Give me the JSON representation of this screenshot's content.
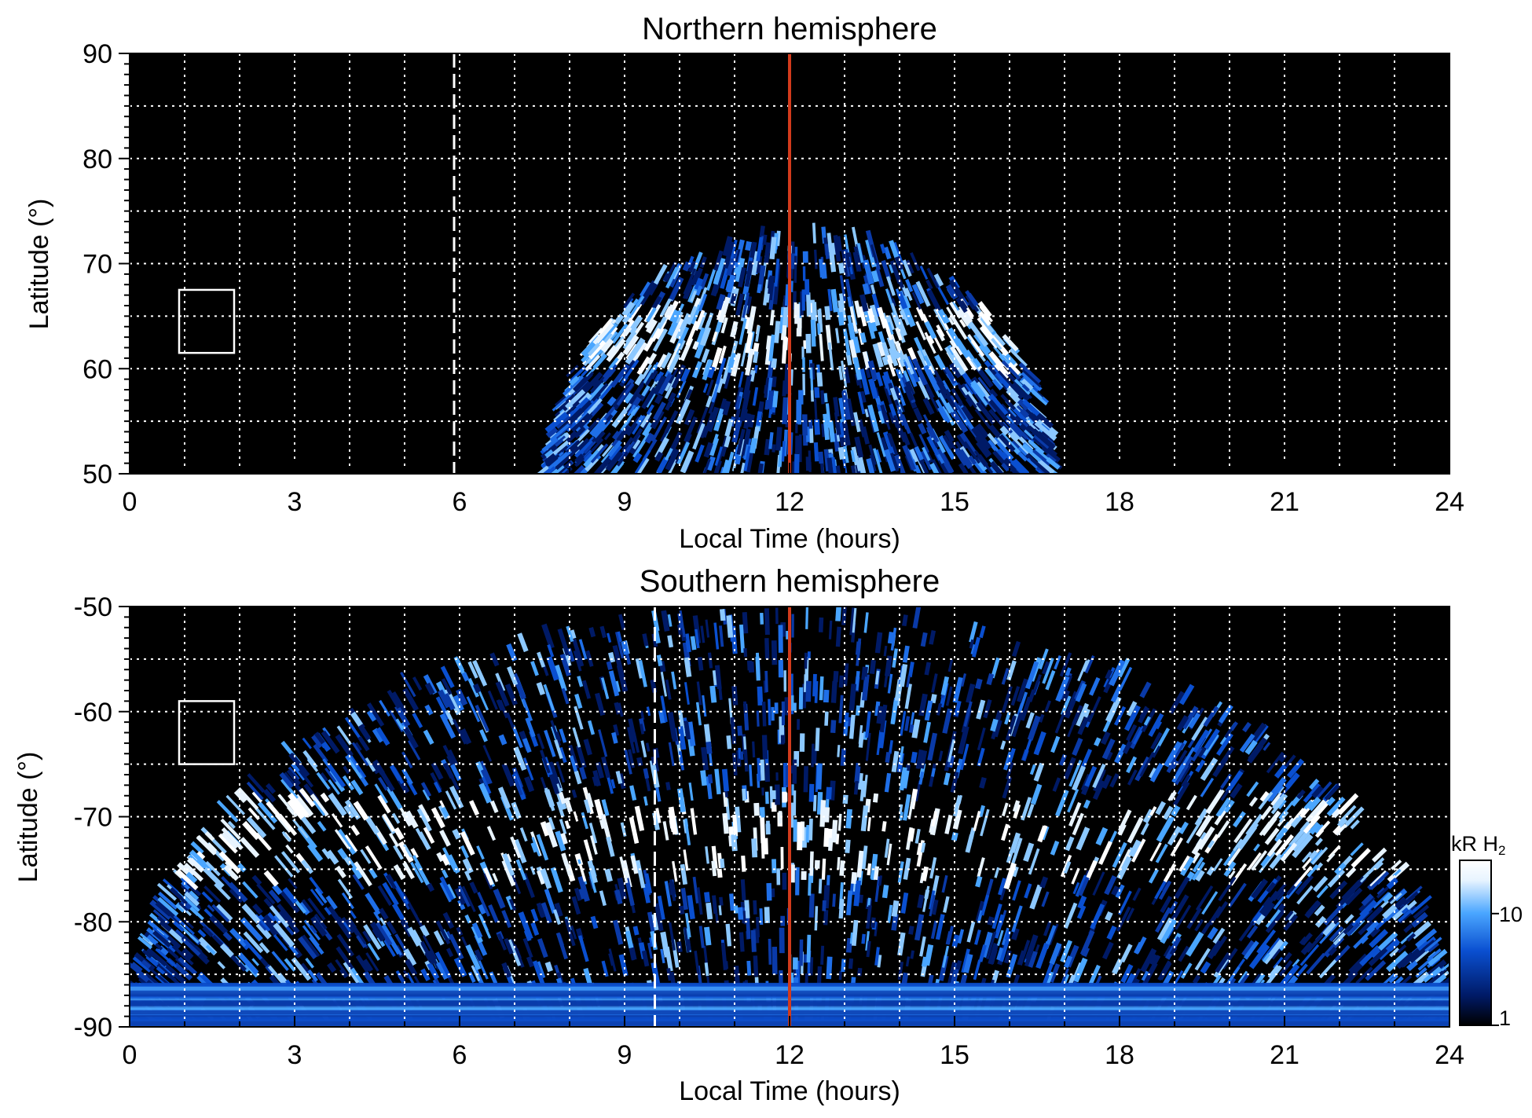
{
  "chart_data": [
    {
      "type": "heatmap",
      "title": "Northern hemisphere",
      "xlabel": "Local Time (hours)",
      "ylabel": "Latitude (°)",
      "xlim": [
        0,
        24
      ],
      "ylim": [
        50,
        90
      ],
      "xticks": [
        0,
        3,
        6,
        9,
        12,
        15,
        18,
        21,
        24
      ],
      "yticks": [
        50,
        60,
        70,
        80,
        90
      ],
      "grid": true,
      "background": "#000000",
      "emission_region": {
        "lt_range": [
          7.6,
          16.8
        ],
        "lat_top_edge_at_noon": 73,
        "bright_band_lat": [
          60,
          66
        ]
      },
      "markers": [
        {
          "kind": "vertical-line",
          "x": 12,
          "color": "#d23b1c"
        },
        {
          "kind": "vertical-dashed-line",
          "x": 5.9,
          "color": "#ffffff"
        },
        {
          "kind": "box",
          "x": [
            0.9,
            1.9
          ],
          "y": [
            61.5,
            67.5
          ],
          "color": "#ffffff"
        }
      ]
    },
    {
      "type": "heatmap",
      "title": "Southern hemisphere",
      "xlabel": "Local Time (hours)",
      "ylabel": "Latitude (°)",
      "xlim": [
        0,
        24
      ],
      "ylim": [
        -90,
        -50
      ],
      "xticks": [
        0,
        3,
        6,
        9,
        12,
        15,
        18,
        21,
        24
      ],
      "yticks": [
        -90,
        -80,
        -70,
        -60,
        -50
      ],
      "grid": true,
      "background": "#000000",
      "emission_region": {
        "lt_range": [
          0,
          24
        ],
        "lat_top_edge_at_noon": -50,
        "bright_band_lat": [
          -76,
          -68
        ]
      },
      "markers": [
        {
          "kind": "vertical-line",
          "x": 12,
          "color": "#d23b1c"
        },
        {
          "kind": "vertical-dashed-line",
          "x": 9.55,
          "color": "#ffffff"
        },
        {
          "kind": "box",
          "x": [
            0.9,
            1.9
          ],
          "y": [
            -65,
            -59
          ],
          "color": "#ffffff"
        }
      ]
    }
  ],
  "colorbar": {
    "label": "kR H",
    "label_subscript": "2",
    "scale": "log",
    "range": [
      1,
      30
    ],
    "ticks": [
      1,
      10
    ],
    "colors": [
      "#000000",
      "#001a66",
      "#0a4fd0",
      "#4aa6ff",
      "#e8f4ff",
      "#ffffff"
    ]
  },
  "colors": {
    "grid": "#ffffff",
    "noon_line": "#d23b1c",
    "plot_background": "#000000"
  }
}
